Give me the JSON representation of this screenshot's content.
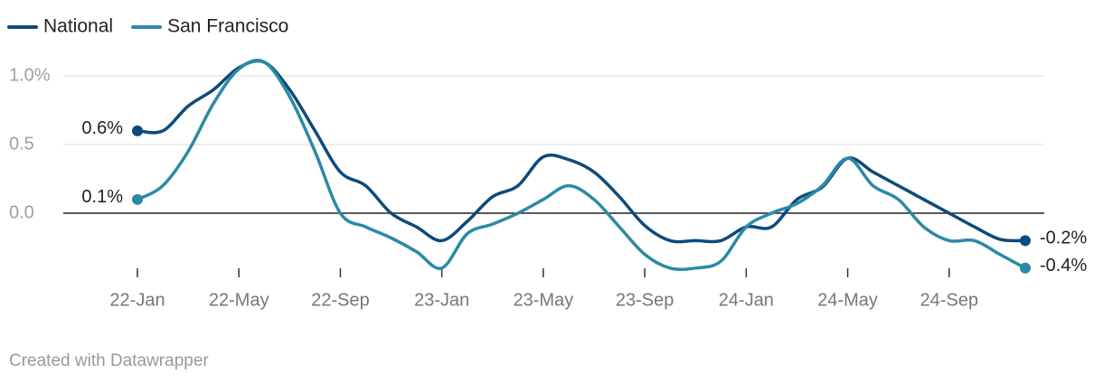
{
  "chart_data": {
    "type": "line",
    "categories": [
      "22-Jan",
      null,
      null,
      null,
      "22-May",
      null,
      null,
      null,
      "22-Sep",
      null,
      null,
      null,
      "23-Jan",
      null,
      null,
      null,
      "23-May",
      null,
      null,
      null,
      "23-Sep",
      null,
      null,
      null,
      "24-Jan",
      null,
      null,
      null,
      "24-May",
      null,
      null,
      null,
      "24-Sep",
      null,
      null,
      null
    ],
    "series": [
      {
        "name": "National",
        "color": "#0d4a7a",
        "values": [
          0.6,
          0.6,
          0.78,
          0.9,
          1.06,
          1.1,
          0.9,
          0.6,
          0.3,
          0.2,
          0.0,
          -0.1,
          -0.2,
          -0.06,
          0.12,
          0.2,
          0.41,
          0.39,
          0.3,
          0.12,
          -0.09,
          -0.2,
          -0.2,
          -0.2,
          -0.1,
          -0.1,
          0.1,
          0.19,
          0.4,
          0.3,
          0.2,
          0.1,
          0.0,
          -0.1,
          -0.19,
          -0.2
        ],
        "value_labels": [
          "0.6%",
          null,
          null,
          null,
          null,
          null,
          null,
          null,
          null,
          null,
          null,
          null,
          null,
          null,
          null,
          null,
          null,
          null,
          null,
          null,
          null,
          null,
          null,
          null,
          null,
          null,
          null,
          null,
          null,
          null,
          null,
          null,
          null,
          null,
          null,
          "-0.2%"
        ]
      },
      {
        "name": "San Francisco",
        "color": "#2a8aa6",
        "values": [
          0.1,
          0.2,
          0.45,
          0.8,
          1.05,
          1.1,
          0.85,
          0.45,
          0.0,
          -0.1,
          -0.18,
          -0.28,
          -0.4,
          -0.15,
          -0.08,
          0.0,
          0.1,
          0.2,
          0.1,
          -0.1,
          -0.3,
          -0.4,
          -0.4,
          -0.35,
          -0.1,
          0.0,
          0.07,
          0.2,
          0.4,
          0.2,
          0.1,
          -0.1,
          -0.2,
          -0.2,
          -0.3,
          -0.4
        ],
        "value_labels": [
          "0.1%",
          null,
          null,
          null,
          null,
          null,
          null,
          null,
          null,
          null,
          null,
          null,
          null,
          null,
          null,
          null,
          null,
          null,
          null,
          null,
          null,
          null,
          null,
          null,
          null,
          null,
          null,
          null,
          null,
          null,
          null,
          null,
          null,
          null,
          null,
          "-0.4%"
        ]
      }
    ],
    "ylim": [
      -0.45,
      1.12
    ],
    "yticks": [
      {
        "value": 1,
        "label": "1.0%"
      },
      {
        "value": 0.5,
        "label": "0.5"
      },
      {
        "value": 0,
        "label": "0.0"
      }
    ],
    "grid": true,
    "legend": "top-left",
    "footer": "Created with Datawrapper"
  }
}
